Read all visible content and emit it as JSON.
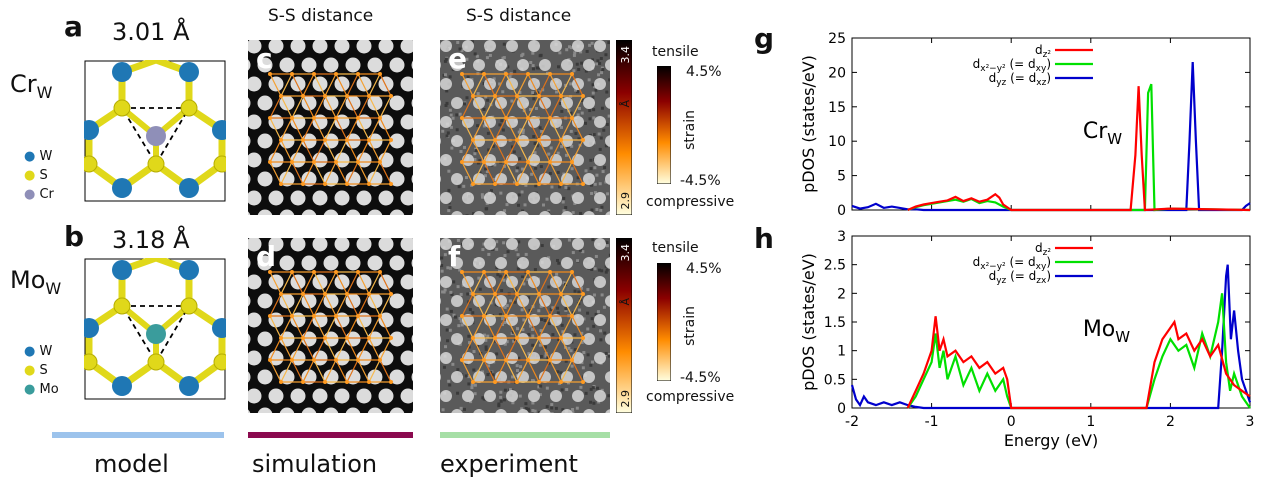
{
  "panels": {
    "a": "a",
    "b": "b",
    "c": "c",
    "d": "d",
    "e": "e",
    "f": "f",
    "g": "g",
    "h": "h"
  },
  "model": {
    "top": {
      "distance": "3.01 Å",
      "label_main": "Cr",
      "label_sub": "W",
      "legend": [
        "W",
        "S",
        "Cr"
      ],
      "dopant_color": "#8f8fb8"
    },
    "bottom": {
      "distance": "3.18 Å",
      "label_main": "Mo",
      "label_sub": "W",
      "legend": [
        "W",
        "S",
        "Mo"
      ],
      "dopant_color": "#3a9c9c"
    }
  },
  "column_headers": {
    "simulation": "S-S distance",
    "experiment": "S-S distance"
  },
  "colorbar": {
    "top_value": "3.4",
    "bottom_value": "2.9",
    "unit": "Å",
    "tensile": "tensile",
    "compressive": "compressive",
    "max_pct": "4.5%",
    "min_pct": "-4.5%",
    "strain": "strain"
  },
  "footer": {
    "model": "model",
    "simulation": "simulation",
    "experiment": "experiment",
    "model_color": "#9cc3ec",
    "simulation_color": "#8b0a4f",
    "experiment_color": "#a6dfa6"
  },
  "chart_data": [
    {
      "type": "line",
      "panel": "g",
      "annotation": {
        "main": "Cr",
        "sub": "W"
      },
      "ylabel": "pDOS (states/eV)",
      "xlabel": "",
      "xlim": [
        -2,
        3
      ],
      "ylim": [
        0,
        25
      ],
      "yticks": [
        "0",
        "5",
        "10",
        "15",
        "20",
        "25"
      ],
      "legend": [
        {
          "text": "d",
          "sub": "z²",
          "tail": "",
          "color": "#ff0000"
        },
        {
          "text": "d",
          "sub": "x²−y²",
          "tail": " (= d",
          "tailsub": "xy",
          "close": ")",
          "color": "#00e000"
        },
        {
          "text": "d",
          "sub": "yz",
          "tail": " (= d",
          "tailsub": "xz",
          "close": ")",
          "color": "#0000cc"
        }
      ],
      "series": [
        {
          "color": "#0000cc",
          "x": [
            -2,
            -1.9,
            -1.8,
            -1.7,
            -1.6,
            -1.5,
            -1.4,
            -1.3,
            -1.2,
            -1.1,
            -1.0,
            -0.5,
            0,
            0.5,
            1,
            1.5,
            2,
            2.2,
            2.24,
            2.28,
            2.32,
            2.36,
            2.4,
            2.6,
            2.9,
            2.95,
            3.0
          ],
          "y": [
            0.6,
            0.2,
            0.4,
            0.9,
            0.3,
            0.5,
            0.3,
            0.1,
            0.1,
            0,
            0,
            0,
            0,
            0,
            0,
            0,
            0,
            0,
            10,
            21.5,
            10,
            0,
            0,
            0,
            0,
            0.6,
            1.0
          ]
        },
        {
          "color": "#00e000",
          "x": [
            -1.3,
            -1.2,
            -1.1,
            -1.0,
            -0.9,
            -0.8,
            -0.7,
            -0.6,
            -0.5,
            -0.4,
            -0.3,
            -0.2,
            -0.1,
            0,
            1.5,
            1.68,
            1.72,
            1.76,
            1.8,
            2.0,
            2.5,
            3.0
          ],
          "y": [
            0,
            0.4,
            0.7,
            0.9,
            1.1,
            1.3,
            1.5,
            1.2,
            1.6,
            1.0,
            1.3,
            1.1,
            0.5,
            0,
            0,
            0,
            17,
            18.3,
            0,
            0.2,
            0.1,
            0
          ]
        },
        {
          "color": "#ff0000",
          "x": [
            -1.3,
            -1.2,
            -1.1,
            -1.0,
            -0.9,
            -0.8,
            -0.7,
            -0.6,
            -0.5,
            -0.4,
            -0.3,
            -0.2,
            -0.15,
            -0.1,
            0,
            1.5,
            1.56,
            1.6,
            1.64,
            1.68,
            2.0,
            3.0
          ],
          "y": [
            0,
            0.5,
            0.8,
            1.0,
            1.2,
            1.4,
            1.9,
            1.3,
            1.7,
            1.2,
            1.5,
            2.3,
            1.8,
            0.8,
            0,
            0,
            8,
            18,
            8,
            0,
            0.2,
            0
          ]
        }
      ]
    },
    {
      "type": "line",
      "panel": "h",
      "annotation": {
        "main": "Mo",
        "sub": "W"
      },
      "ylabel": "pDOS (states/eV)",
      "xlabel": "Energy (eV)",
      "xlim": [
        -2,
        3
      ],
      "ylim": [
        0,
        3
      ],
      "xticks": [
        "-2",
        "-1",
        "0",
        "1",
        "2",
        "3"
      ],
      "yticks": [
        "0",
        "0.5",
        "1",
        "1.5",
        "2",
        "2.5",
        "3"
      ],
      "legend": [
        {
          "text": "d",
          "sub": "z²",
          "tail": "",
          "color": "#ff0000"
        },
        {
          "text": "d",
          "sub": "x²−y²",
          "tail": " (= d",
          "tailsub": "xy",
          "close": ")",
          "color": "#00e000"
        },
        {
          "text": "d",
          "sub": "yz",
          "tail": " (= d",
          "tailsub": "zx",
          "close": ")",
          "color": "#0000cc"
        }
      ],
      "series": [
        {
          "color": "#0000cc",
          "x": [
            -2,
            -1.95,
            -1.9,
            -1.85,
            -1.8,
            -1.7,
            -1.6,
            -1.5,
            -1.4,
            -1.3,
            -1.2,
            -1.1,
            -1.0,
            0,
            1,
            2,
            2.5,
            2.6,
            2.65,
            2.7,
            2.72,
            2.76,
            2.8,
            2.85,
            2.9,
            2.95,
            3.0
          ],
          "y": [
            0.4,
            0.15,
            0.05,
            0.2,
            0.1,
            0.05,
            0.1,
            0.05,
            0.1,
            0.05,
            0.02,
            0,
            0,
            0,
            0,
            0,
            0,
            0,
            1.0,
            2.3,
            2.5,
            1.2,
            1.7,
            1.0,
            0.5,
            0.3,
            0.1
          ]
        },
        {
          "color": "#00e000",
          "x": [
            -1.3,
            -1.2,
            -1.1,
            -1.0,
            -0.95,
            -0.9,
            -0.85,
            -0.8,
            -0.7,
            -0.6,
            -0.5,
            -0.4,
            -0.3,
            -0.2,
            -0.1,
            -0.05,
            0,
            1.7,
            1.8,
            1.9,
            2.0,
            2.1,
            2.2,
            2.3,
            2.4,
            2.5,
            2.6,
            2.65,
            2.7,
            2.75,
            2.8,
            2.9,
            3.0
          ],
          "y": [
            0,
            0.2,
            0.5,
            0.8,
            1.3,
            0.7,
            1.0,
            0.5,
            0.9,
            0.4,
            0.7,
            0.3,
            0.6,
            0.3,
            0.5,
            0.2,
            0,
            0,
            0.5,
            0.9,
            1.2,
            1.0,
            1.1,
            0.7,
            1.3,
            0.9,
            1.5,
            2.0,
            0.8,
            0.3,
            0.6,
            0.2,
            0
          ]
        },
        {
          "color": "#ff0000",
          "x": [
            -1.3,
            -1.2,
            -1.1,
            -1.0,
            -0.95,
            -0.9,
            -0.85,
            -0.8,
            -0.7,
            -0.6,
            -0.5,
            -0.4,
            -0.3,
            -0.2,
            -0.1,
            -0.05,
            0,
            1.7,
            1.8,
            1.9,
            2.0,
            2.05,
            2.1,
            2.2,
            2.3,
            2.4,
            2.5,
            2.6,
            2.7,
            2.8,
            2.9,
            3.0
          ],
          "y": [
            0,
            0.3,
            0.6,
            1.0,
            1.6,
            1.0,
            1.2,
            0.9,
            1.0,
            0.8,
            0.9,
            0.7,
            0.8,
            0.6,
            0.7,
            0.5,
            0,
            0,
            0.8,
            1.2,
            1.4,
            1.5,
            1.2,
            1.3,
            1.0,
            1.2,
            0.9,
            1.1,
            0.6,
            0.4,
            0.3,
            0.2
          ]
        }
      ]
    }
  ]
}
